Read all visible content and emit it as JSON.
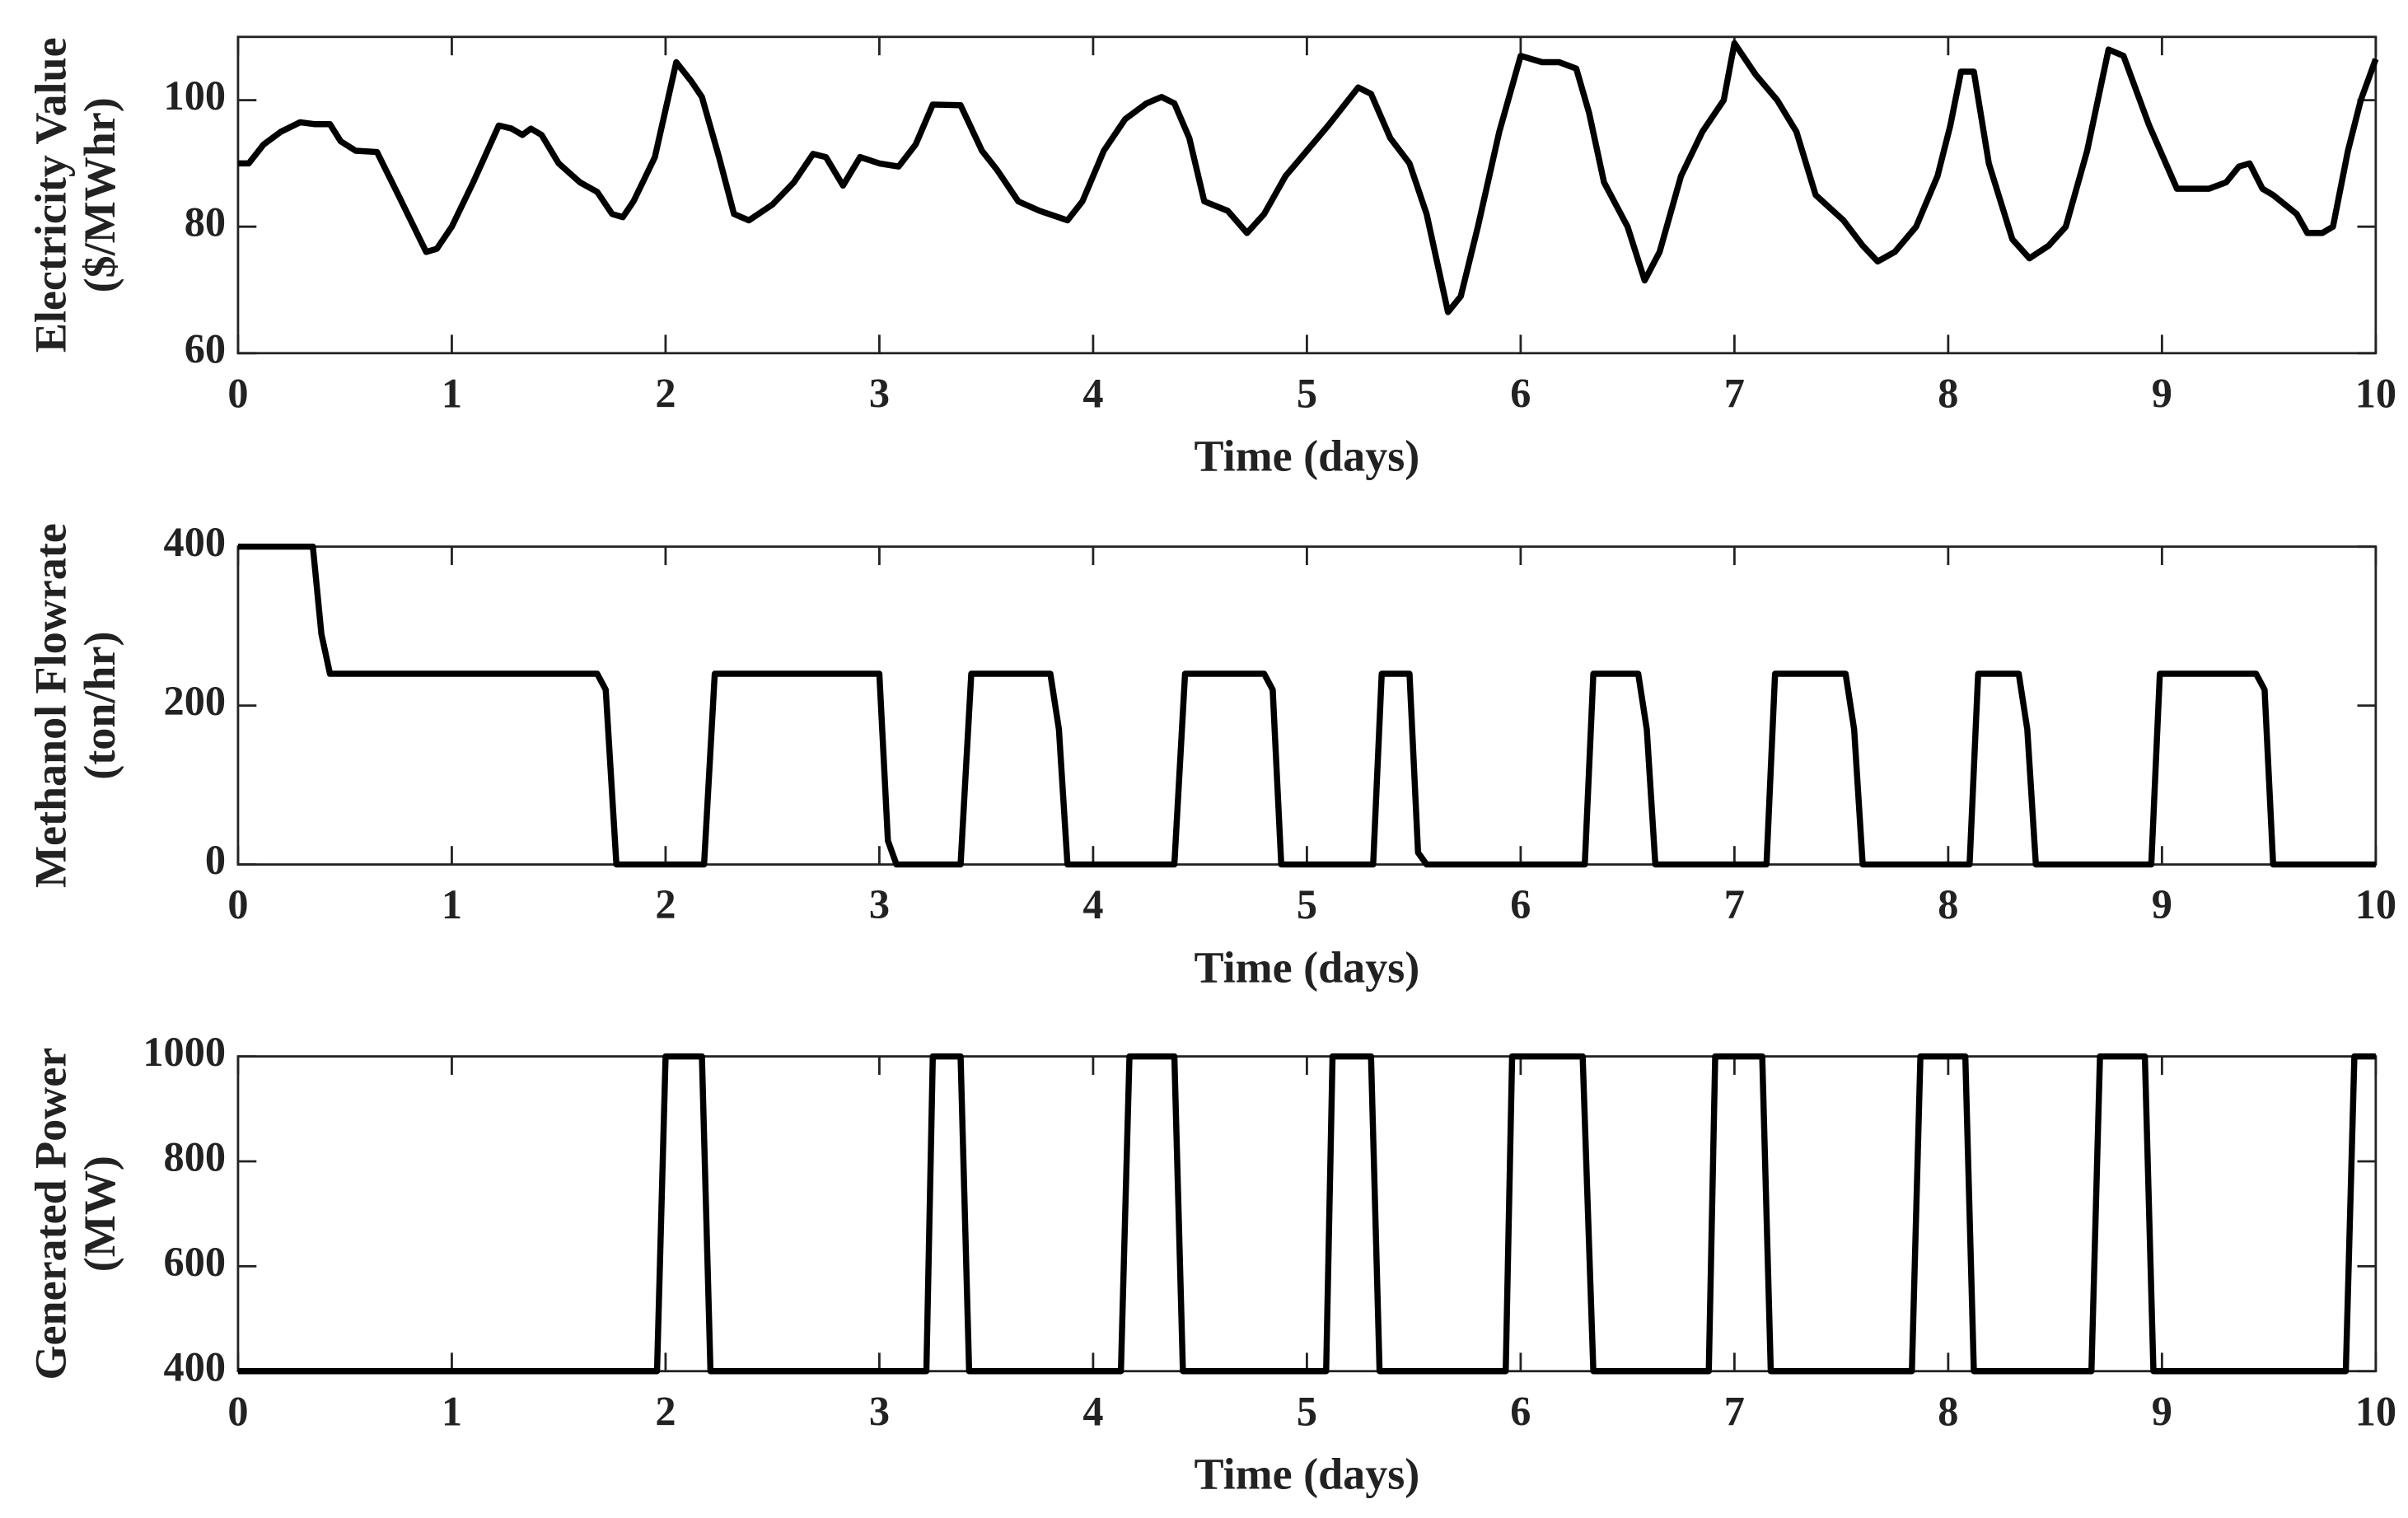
{
  "chart_data": [
    {
      "type": "line",
      "xlabel": "Time (days)",
      "ylabel": [
        "Electricity Value",
        "($/MWhr)"
      ],
      "xlim": [
        0,
        10
      ],
      "xticks": [
        0,
        1,
        2,
        3,
        4,
        5,
        6,
        7,
        8,
        9,
        10
      ],
      "ylim": [
        60,
        110
      ],
      "yticks": [
        60,
        80,
        100
      ],
      "color": "#000000",
      "x": [
        0,
        0.05,
        0.12,
        0.2,
        0.29,
        0.36,
        0.43,
        0.48,
        0.55,
        0.65,
        0.75,
        0.88,
        0.93,
        1.0,
        1.1,
        1.22,
        1.28,
        1.33,
        1.37,
        1.42,
        1.5,
        1.6,
        1.68,
        1.75,
        1.8,
        1.85,
        1.95,
        2.05,
        2.12,
        2.17,
        2.25,
        2.32,
        2.39,
        2.5,
        2.6,
        2.69,
        2.75,
        2.83,
        2.91,
        3.0,
        3.09,
        3.17,
        3.25,
        3.38,
        3.48,
        3.55,
        3.65,
        3.75,
        3.88,
        3.95,
        4.05,
        4.15,
        4.25,
        4.32,
        4.38,
        4.45,
        4.52,
        4.63,
        4.72,
        4.8,
        4.9,
        5.0,
        5.1,
        5.24,
        5.3,
        5.39,
        5.48,
        5.56,
        5.66,
        5.72,
        5.8,
        5.9,
        6.0,
        6.1,
        6.18,
        6.26,
        6.32,
        6.39,
        6.5,
        6.58,
        6.65,
        6.75,
        6.85,
        6.95,
        7.0,
        7.1,
        7.2,
        7.29,
        7.38,
        7.51,
        7.6,
        7.67,
        7.75,
        7.85,
        7.95,
        8.01,
        8.06,
        8.12,
        8.19,
        8.3,
        8.38,
        8.47,
        8.55,
        8.65,
        8.75,
        8.82,
        8.94,
        9.07,
        9.15,
        9.22,
        9.3,
        9.36,
        9.41,
        9.47,
        9.52,
        9.63,
        9.68,
        9.75,
        9.8,
        9.87,
        9.93,
        10
      ],
      "values": [
        90,
        90,
        93,
        95,
        96.5,
        96.2,
        96.2,
        93.5,
        92,
        91.8,
        85,
        76,
        76.5,
        80,
        87,
        96,
        95.5,
        94.5,
        95.5,
        94.5,
        90,
        87,
        85.5,
        82,
        81.5,
        84,
        91,
        106,
        103,
        100.5,
        91,
        82,
        81,
        83.5,
        87,
        91.5,
        91,
        86.5,
        91,
        90,
        89.5,
        93,
        99.3,
        99.2,
        92,
        89,
        84,
        82.5,
        81,
        84,
        92,
        97,
        99.5,
        100.5,
        99.5,
        94,
        84,
        82.5,
        79,
        82,
        88,
        92,
        96,
        102,
        101,
        94,
        90,
        82,
        66.5,
        69,
        80,
        95,
        107,
        106,
        106,
        105,
        98,
        87,
        80,
        71.5,
        76,
        88,
        95,
        100,
        109,
        104,
        100,
        95,
        85,
        81,
        77,
        74.5,
        76,
        80,
        88,
        96,
        104.5,
        104.5,
        90,
        78,
        75,
        77,
        80,
        92,
        108,
        107,
        96,
        86,
        86,
        86,
        87,
        89.5,
        90,
        86,
        85,
        82,
        79,
        79,
        80,
        92,
        100,
        106.5
      ]
    },
    {
      "type": "line",
      "xlabel": "Time (days)",
      "ylabel": [
        "Methanol Flowrate",
        "(ton/hr)"
      ],
      "xlim": [
        0,
        10
      ],
      "xticks": [
        0,
        1,
        2,
        3,
        4,
        5,
        6,
        7,
        8,
        9,
        10
      ],
      "ylim": [
        0,
        400
      ],
      "yticks": [
        0,
        200,
        400
      ],
      "color": "#000000",
      "x": [
        0,
        0.35,
        0.39,
        0.43,
        1.68,
        1.72,
        1.77,
        2.18,
        2.23,
        3.0,
        3.04,
        3.08,
        3.38,
        3.43,
        3.8,
        3.84,
        3.88,
        4.38,
        4.43,
        4.8,
        4.84,
        4.88,
        5.31,
        5.35,
        5.48,
        5.52,
        5.56,
        6.3,
        6.34,
        6.55,
        6.59,
        6.63,
        7.15,
        7.19,
        7.52,
        7.56,
        7.6,
        8.1,
        8.14,
        8.33,
        8.37,
        8.41,
        8.95,
        8.99,
        9.44,
        9.48,
        9.52,
        10
      ],
      "values": [
        400,
        400,
        290,
        240,
        240,
        220,
        0,
        0,
        240,
        240,
        30,
        0,
        0,
        240,
        240,
        170,
        0,
        0,
        240,
        240,
        220,
        0,
        0,
        240,
        240,
        15,
        0,
        0,
        240,
        240,
        170,
        0,
        0,
        240,
        240,
        170,
        0,
        0,
        240,
        240,
        170,
        0,
        0,
        240,
        240,
        220,
        0,
        0
      ]
    },
    {
      "type": "line",
      "xlabel": "Time (days)",
      "ylabel": [
        "Generated Power",
        "(MW)"
      ],
      "xlim": [
        0,
        10
      ],
      "xticks": [
        0,
        1,
        2,
        3,
        4,
        5,
        6,
        7,
        8,
        9,
        10
      ],
      "ylim": [
        400,
        1000
      ],
      "yticks": [
        400,
        600,
        800,
        1000
      ],
      "color": "#000000",
      "x": [
        0,
        1.96,
        2.0,
        2.17,
        2.21,
        3.22,
        3.25,
        3.38,
        3.42,
        4.13,
        4.17,
        4.38,
        4.42,
        5.09,
        5.12,
        5.3,
        5.34,
        5.93,
        5.96,
        6.29,
        6.34,
        6.88,
        6.91,
        7.13,
        7.17,
        7.83,
        7.87,
        8.08,
        8.12,
        8.67,
        8.71,
        8.92,
        8.96,
        9.86,
        9.9,
        10
      ],
      "values": [
        400,
        400,
        1000,
        1000,
        400,
        400,
        1000,
        1000,
        400,
        400,
        1000,
        1000,
        400,
        400,
        1000,
        1000,
        400,
        400,
        1000,
        1000,
        400,
        400,
        1000,
        1000,
        400,
        400,
        1000,
        1000,
        400,
        400,
        1000,
        1000,
        400,
        400,
        1000,
        1000
      ]
    }
  ]
}
